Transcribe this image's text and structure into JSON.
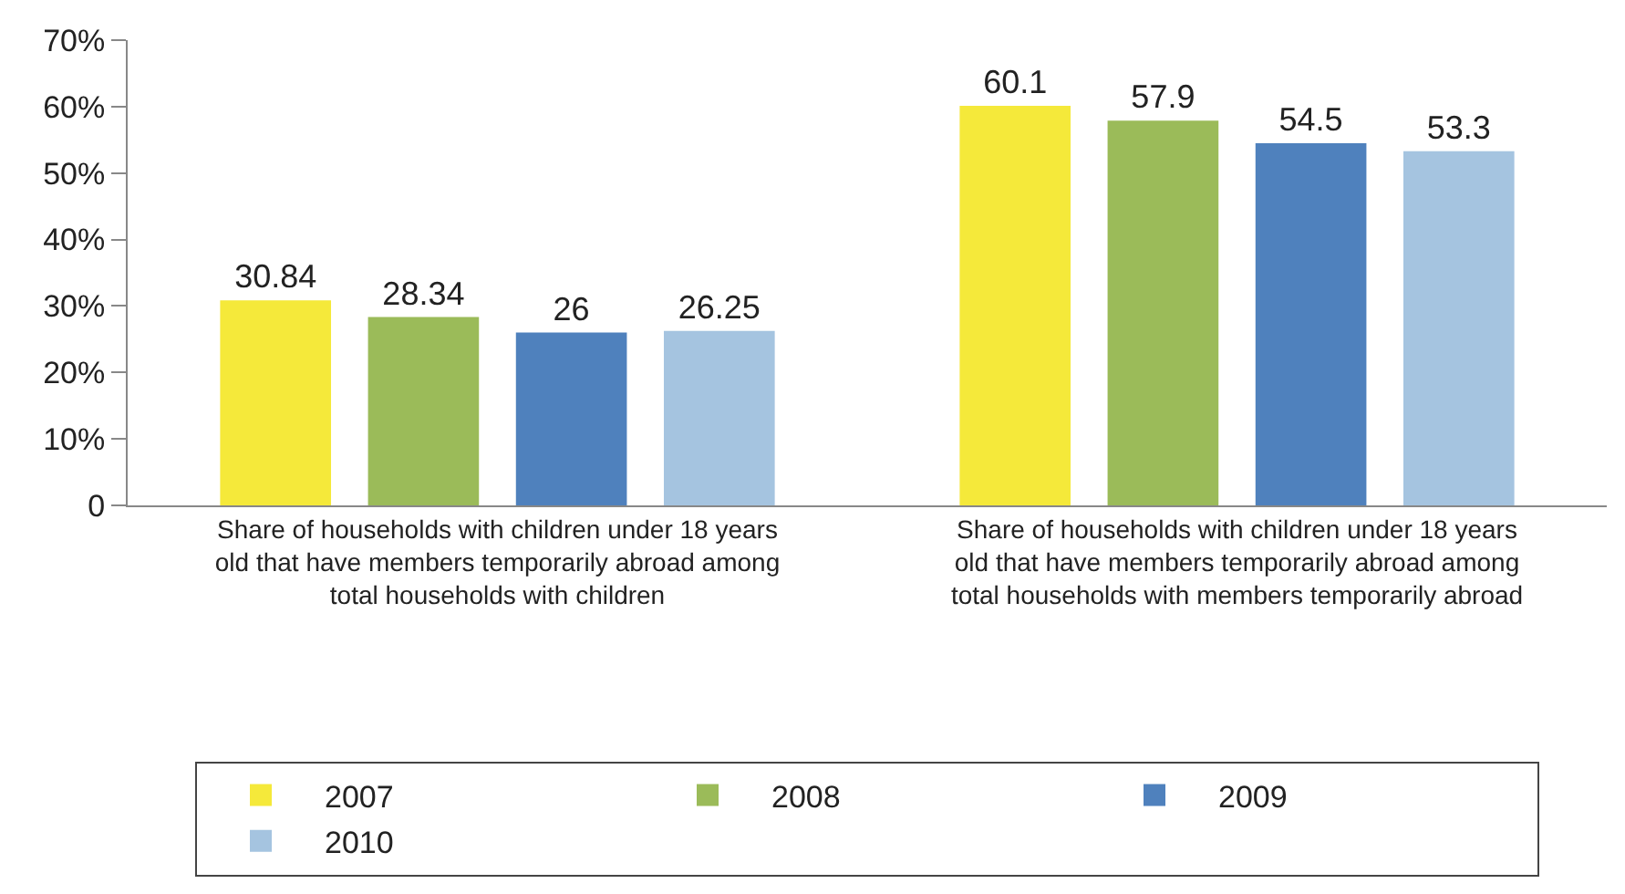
{
  "chart_data": {
    "type": "bar",
    "categories": [
      "Share of households with children under 18 years old that have members temporarily abroad among total households with children",
      "Share of households with children under 18 years old that have members temporarily abroad among total households with members temporarily abroad"
    ],
    "series": [
      {
        "name": "2007",
        "color": "#f5e93a",
        "values": [
          30.84,
          60.1
        ]
      },
      {
        "name": "2008",
        "color": "#9bbb59",
        "values": [
          28.34,
          57.9
        ]
      },
      {
        "name": "2009",
        "color": "#4f81bd",
        "values": [
          26,
          54.5
        ]
      },
      {
        "name": "2010",
        "color": "#a5c4e0",
        "values": [
          26.25,
          53.3
        ]
      }
    ],
    "ylim": [
      0,
      70
    ],
    "yticks": [
      0,
      {
        "value": 10,
        "label": "10%"
      },
      {
        "value": 20,
        "label": "20%"
      },
      {
        "value": 30,
        "label": "30%"
      },
      {
        "value": 40,
        "label": "40%"
      },
      {
        "value": 50,
        "label": "50%"
      },
      {
        "value": 60,
        "label": "60%"
      },
      {
        "value": 70,
        "label": "70%"
      }
    ],
    "data_labels": true,
    "grid": false,
    "legend": "bottom"
  }
}
